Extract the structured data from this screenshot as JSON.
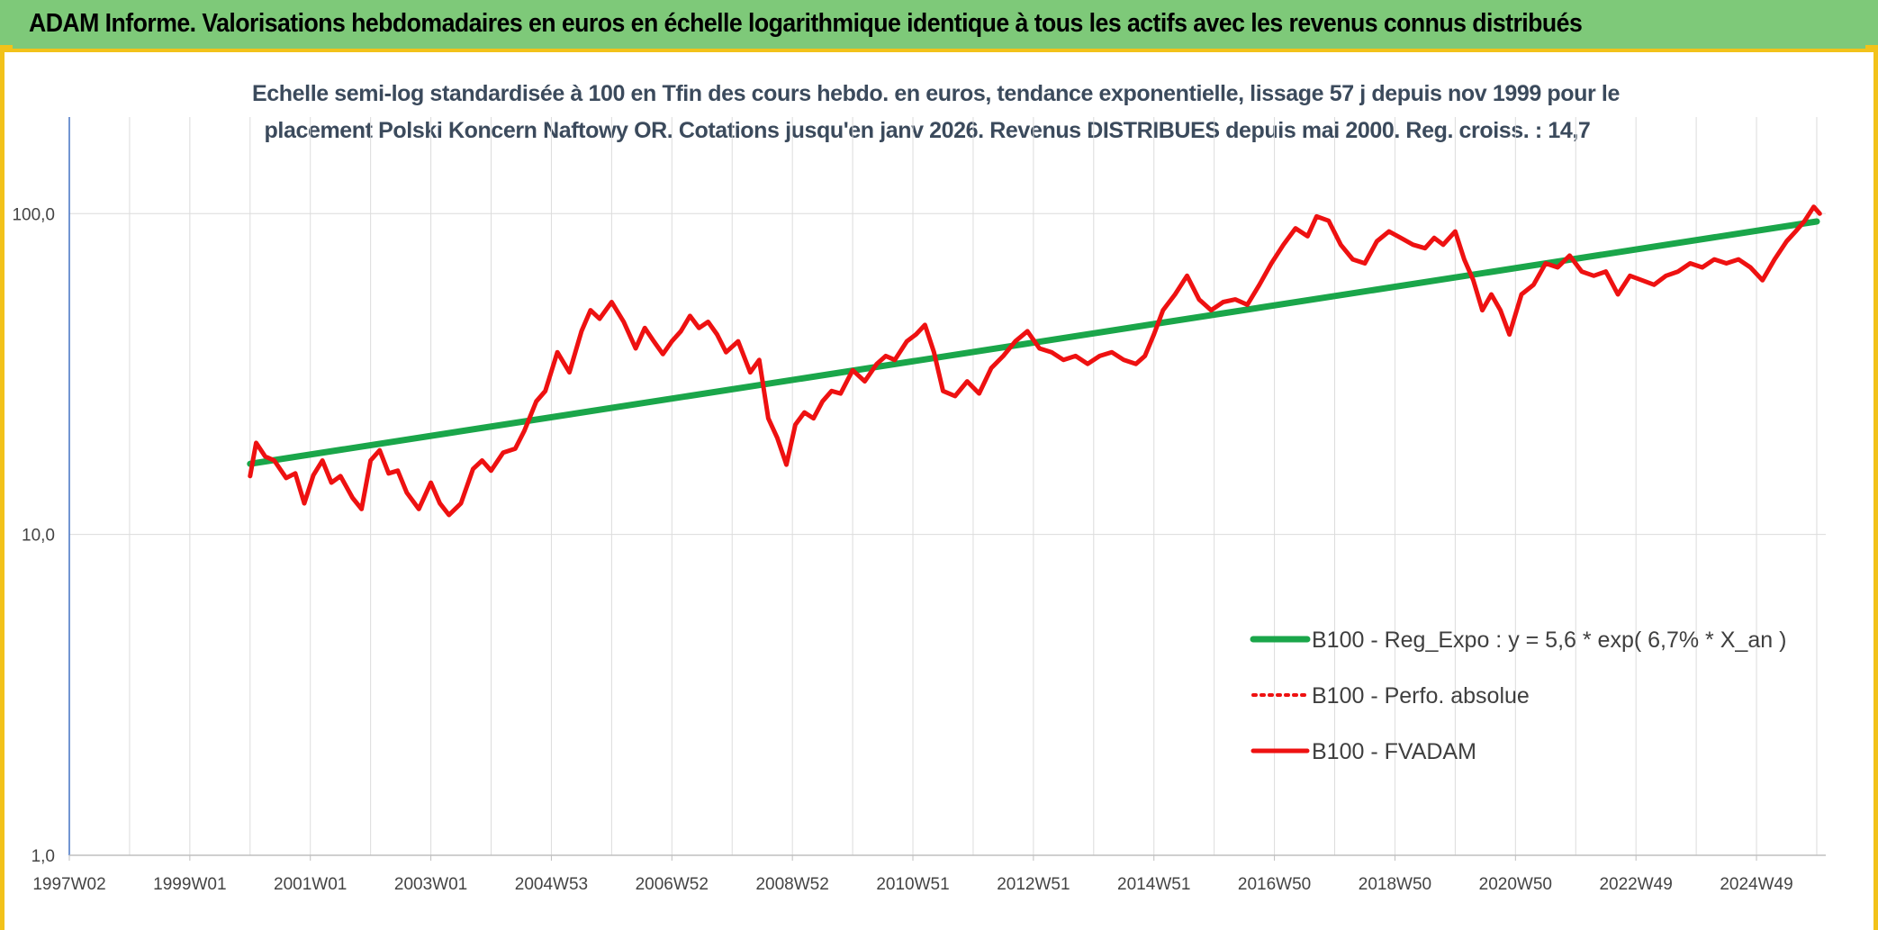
{
  "banner": {
    "title": "ADAM Informe. Valorisations hebdomadaires en euros en échelle logarithmique identique à tous les actifs avec les revenus connus distribués"
  },
  "colors": {
    "banner_bg": "#7ec979",
    "accent": "#f2c21a",
    "regression": "#1aa64a",
    "fvadam": "#ee1111",
    "perfo": "#ee1111"
  },
  "chart_data": {
    "type": "line",
    "title_line1": "Echelle semi-log standardisée à 100 en Tfin des cours hebdo. en euros, tendance exponentielle, lissage 57 j depuis nov 1999 pour le",
    "title_line2": "placement Polski Koncern Naftowy OR. Cotations jusqu'en janv 2026. Revenus DISTRIBUES depuis mai 2000. Reg. croiss. : 14,7",
    "y_scale": "log",
    "ylim": [
      1,
      200
    ],
    "y_ticks": [
      {
        "value": 1,
        "label": "1,0"
      },
      {
        "value": 10,
        "label": "10,0"
      },
      {
        "value": 100,
        "label": "100,0"
      }
    ],
    "x_range": [
      1997.0,
      2026.15
    ],
    "x_ticks": [
      {
        "x": 1997.0,
        "label": "1997W02"
      },
      {
        "x": 1999.0,
        "label": "1999W01"
      },
      {
        "x": 2001.0,
        "label": "2001W01"
      },
      {
        "x": 2003.0,
        "label": "2003W01"
      },
      {
        "x": 2005.0,
        "label": "2004W53"
      },
      {
        "x": 2007.0,
        "label": "2006W52"
      },
      {
        "x": 2009.0,
        "label": "2008W52"
      },
      {
        "x": 2011.0,
        "label": "2010W51"
      },
      {
        "x": 2013.0,
        "label": "2012W51"
      },
      {
        "x": 2015.0,
        "label": "2014W51"
      },
      {
        "x": 2017.0,
        "label": "2016W50"
      },
      {
        "x": 2019.0,
        "label": "2018W50"
      },
      {
        "x": 2021.0,
        "label": "2020W50"
      },
      {
        "x": 2023.0,
        "label": "2022W49"
      },
      {
        "x": 2025.0,
        "label": "2024W49"
      }
    ],
    "minor_x_ticks": [
      1998,
      2000,
      2002,
      2004,
      2006,
      2008,
      2010,
      2012,
      2014,
      2016,
      2018,
      2020,
      2022,
      2024,
      2026
    ],
    "grid": true,
    "legend_position": "bottom-right",
    "series": [
      {
        "name": "B100 - Reg_Expo : y = 5,6 * exp( 6,7% *  X_an )",
        "style": "solid-thick",
        "color": "#1aa64a",
        "x": [
          2000.0,
          2026.0
        ],
        "y": [
          16.6,
          94.5
        ]
      },
      {
        "name": "B100 - Perfo. absolue",
        "style": "dotted",
        "color": "#ee1111",
        "x": [],
        "y": []
      },
      {
        "name": "B100 - FVADAM",
        "style": "solid",
        "color": "#ee1111",
        "x": [
          2000.0,
          2000.1,
          2000.25,
          2000.4,
          2000.6,
          2000.75,
          2000.9,
          2001.05,
          2001.2,
          2001.35,
          2001.5,
          2001.7,
          2001.85,
          2002.0,
          2002.15,
          2002.3,
          2002.45,
          2002.6,
          2002.8,
          2003.0,
          2003.15,
          2003.3,
          2003.5,
          2003.7,
          2003.85,
          2004.0,
          2004.2,
          2004.4,
          2004.55,
          2004.75,
          2004.9,
          2005.1,
          2005.3,
          2005.5,
          2005.65,
          2005.8,
          2006.0,
          2006.2,
          2006.4,
          2006.55,
          2006.7,
          2006.85,
          2007.0,
          2007.15,
          2007.3,
          2007.45,
          2007.6,
          2007.75,
          2007.9,
          2008.1,
          2008.3,
          2008.45,
          2008.6,
          2008.75,
          2008.9,
          2009.05,
          2009.2,
          2009.35,
          2009.5,
          2009.65,
          2009.8,
          2010.0,
          2010.2,
          2010.4,
          2010.55,
          2010.7,
          2010.9,
          2011.05,
          2011.2,
          2011.35,
          2011.5,
          2011.7,
          2011.9,
          2012.1,
          2012.3,
          2012.5,
          2012.7,
          2012.9,
          2013.1,
          2013.3,
          2013.5,
          2013.7,
          2013.9,
          2014.1,
          2014.3,
          2014.5,
          2014.7,
          2014.85,
          2015.0,
          2015.15,
          2015.35,
          2015.55,
          2015.75,
          2015.95,
          2016.15,
          2016.35,
          2016.55,
          2016.75,
          2016.95,
          2017.15,
          2017.35,
          2017.55,
          2017.7,
          2017.9,
          2018.1,
          2018.3,
          2018.5,
          2018.7,
          2018.9,
          2019.1,
          2019.3,
          2019.5,
          2019.65,
          2019.8,
          2020.0,
          2020.15,
          2020.3,
          2020.45,
          2020.6,
          2020.75,
          2020.9,
          2021.1,
          2021.3,
          2021.5,
          2021.7,
          2021.9,
          2022.1,
          2022.3,
          2022.5,
          2022.7,
          2022.9,
          2023.1,
          2023.3,
          2023.5,
          2023.7,
          2023.9,
          2024.1,
          2024.3,
          2024.5,
          2024.7,
          2024.9,
          2025.1,
          2025.3,
          2025.5,
          2025.65,
          2025.8,
          2025.95,
          2026.05
        ],
        "y": [
          15.2,
          19.3,
          17.5,
          17.0,
          15.0,
          15.5,
          12.5,
          15.3,
          17.0,
          14.5,
          15.2,
          13.0,
          12.0,
          17.0,
          18.3,
          15.5,
          15.8,
          13.5,
          12.0,
          14.5,
          12.5,
          11.5,
          12.5,
          16.0,
          17.0,
          15.8,
          18.0,
          18.5,
          21.0,
          26.0,
          28.0,
          37.0,
          32.0,
          43.0,
          50.0,
          47.0,
          53.0,
          46.0,
          38.0,
          44.0,
          40.0,
          36.5,
          40.0,
          43.0,
          48.0,
          44.0,
          46.0,
          42.0,
          37.0,
          40.0,
          32.0,
          35.0,
          23.0,
          20.0,
          16.5,
          22.0,
          24.0,
          23.0,
          26.0,
          28.0,
          27.5,
          32.5,
          30.0,
          34.0,
          36.0,
          35.0,
          40.0,
          42.0,
          45.0,
          37.0,
          28.0,
          27.0,
          30.0,
          27.5,
          33.0,
          36.0,
          40.0,
          43.0,
          38.0,
          37.0,
          35.0,
          36.0,
          34.0,
          36.0,
          37.0,
          35.0,
          34.0,
          36.0,
          42.0,
          50.0,
          56.0,
          64.0,
          54.0,
          50.0,
          53.0,
          54.0,
          52.0,
          60.0,
          70.0,
          80.0,
          90.0,
          85.0,
          98.0,
          95.0,
          80.0,
          72.0,
          70.0,
          82.0,
          88.0,
          84.0,
          80.0,
          78.0,
          84.0,
          80.0,
          88.0,
          72.0,
          62.0,
          50.0,
          56.0,
          50.0,
          42.0,
          56.0,
          60.0,
          70.0,
          68.0,
          74.0,
          66.0,
          64.0,
          66.0,
          56.0,
          64.0,
          62.0,
          60.0,
          64.0,
          66.0,
          70.0,
          68.0,
          72.0,
          70.0,
          72.0,
          68.0,
          62.0,
          72.0,
          82.0,
          88.0,
          95.0,
          105.0,
          100.0
        ]
      }
    ]
  }
}
